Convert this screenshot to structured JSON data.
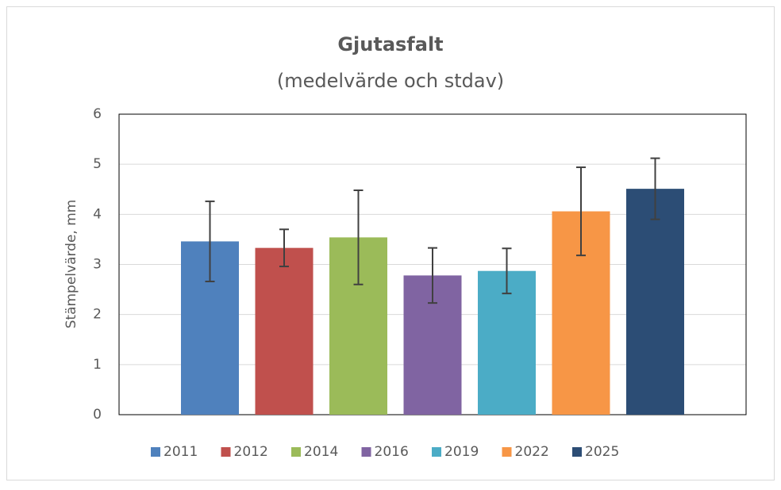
{
  "chart_data": {
    "type": "bar",
    "title": "Gjutasfalt",
    "subtitle": "(medelvärde och stdav)",
    "y_label": "Stämpelvärde, mm",
    "categories": [
      null
    ],
    "series": [
      {
        "name": "2011",
        "color": "#4f81bd",
        "values": [
          3.46
        ],
        "errors": [
          0.8
        ]
      },
      {
        "name": "2012",
        "color": "#c0504d",
        "values": [
          3.33
        ],
        "errors": [
          0.37
        ]
      },
      {
        "name": "2014",
        "color": "#9bbb59",
        "values": [
          3.54
        ],
        "errors": [
          0.94
        ]
      },
      {
        "name": "2016",
        "color": "#8064a2",
        "values": [
          2.78
        ],
        "errors": [
          0.55
        ]
      },
      {
        "name": "2019",
        "color": "#4bacc6",
        "values": [
          2.87
        ],
        "errors": [
          0.45
        ]
      },
      {
        "name": "2022",
        "color": "#f79646",
        "values": [
          4.06
        ],
        "errors": [
          0.88
        ]
      },
      {
        "name": "2025",
        "color": "#2c4d75",
        "values": [
          4.51
        ],
        "errors": [
          0.61
        ]
      }
    ],
    "ylim": [
      0,
      6
    ],
    "yticks": [
      0,
      1,
      2,
      3,
      4,
      5,
      6
    ],
    "grid": true,
    "legend": "bottom"
  }
}
